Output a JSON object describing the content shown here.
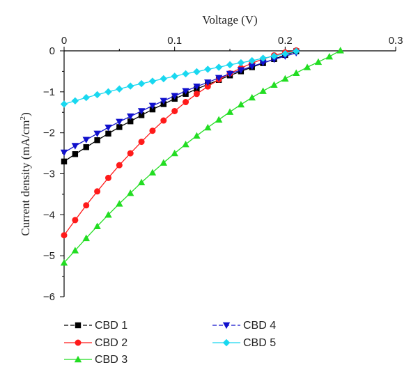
{
  "chart_data": {
    "type": "line",
    "xlabel": "Voltage (V)",
    "ylabel": "Current density (mA/cm",
    "ylabel_sup": "2",
    "ylabel_close": ")",
    "xlim": [
      0,
      0.3
    ],
    "ylim": [
      -6,
      0
    ],
    "x_ticks": [
      0,
      0.1,
      0.2,
      0.3
    ],
    "x_tick_labels": [
      "0",
      "0.1",
      "0.2",
      "0.3"
    ],
    "y_ticks": [
      0,
      -1,
      -2,
      -3,
      -4,
      -5,
      -6
    ],
    "y_tick_labels": [
      "0",
      "−1",
      "−2",
      "−3",
      "−4",
      "−5",
      "−6"
    ],
    "grid": false,
    "legend_position": "bottom",
    "series": [
      {
        "name": "CBD 1",
        "color": "#000000",
        "marker": "square",
        "points": [
          [
            0,
            -2.7
          ],
          [
            0.01,
            -2.52
          ],
          [
            0.02,
            -2.35
          ],
          [
            0.03,
            -2.18
          ],
          [
            0.04,
            -2.02
          ],
          [
            0.05,
            -1.86
          ],
          [
            0.06,
            -1.72
          ],
          [
            0.07,
            -1.57
          ],
          [
            0.08,
            -1.43
          ],
          [
            0.09,
            -1.3
          ],
          [
            0.1,
            -1.17
          ],
          [
            0.11,
            -1.05
          ],
          [
            0.12,
            -0.93
          ],
          [
            0.13,
            -0.82
          ],
          [
            0.14,
            -0.71
          ],
          [
            0.15,
            -0.6
          ],
          [
            0.16,
            -0.5
          ],
          [
            0.17,
            -0.4
          ],
          [
            0.18,
            -0.3
          ],
          [
            0.19,
            -0.2
          ],
          [
            0.2,
            -0.1
          ],
          [
            0.21,
            -0.01
          ]
        ]
      },
      {
        "name": "CBD 2",
        "color": "#ff1a1a",
        "marker": "circle",
        "points": [
          [
            0,
            -4.5
          ],
          [
            0.01,
            -4.13
          ],
          [
            0.02,
            -3.77
          ],
          [
            0.03,
            -3.43
          ],
          [
            0.04,
            -3.1
          ],
          [
            0.05,
            -2.79
          ],
          [
            0.06,
            -2.5
          ],
          [
            0.07,
            -2.22
          ],
          [
            0.08,
            -1.95
          ],
          [
            0.09,
            -1.7
          ],
          [
            0.1,
            -1.47
          ],
          [
            0.11,
            -1.25
          ],
          [
            0.12,
            -1.05
          ],
          [
            0.13,
            -0.87
          ],
          [
            0.14,
            -0.7
          ],
          [
            0.15,
            -0.55
          ],
          [
            0.16,
            -0.42
          ],
          [
            0.17,
            -0.3
          ],
          [
            0.18,
            -0.2
          ],
          [
            0.19,
            -0.11
          ],
          [
            0.2,
            -0.04
          ],
          [
            0.21,
            0.01
          ]
        ]
      },
      {
        "name": "CBD 3",
        "color": "#22dd22",
        "marker": "triangle-up",
        "points": [
          [
            0,
            -5.17
          ],
          [
            0.01,
            -4.87
          ],
          [
            0.02,
            -4.57
          ],
          [
            0.03,
            -4.28
          ],
          [
            0.04,
            -4.0
          ],
          [
            0.05,
            -3.73
          ],
          [
            0.06,
            -3.47
          ],
          [
            0.07,
            -3.21
          ],
          [
            0.08,
            -2.97
          ],
          [
            0.09,
            -2.73
          ],
          [
            0.1,
            -2.5
          ],
          [
            0.11,
            -2.28
          ],
          [
            0.12,
            -2.07
          ],
          [
            0.13,
            -1.87
          ],
          [
            0.14,
            -1.68
          ],
          [
            0.15,
            -1.49
          ],
          [
            0.16,
            -1.31
          ],
          [
            0.17,
            -1.14
          ],
          [
            0.18,
            -0.98
          ],
          [
            0.19,
            -0.83
          ],
          [
            0.2,
            -0.68
          ],
          [
            0.21,
            -0.54
          ],
          [
            0.22,
            -0.4
          ],
          [
            0.23,
            -0.27
          ],
          [
            0.24,
            -0.14
          ],
          [
            0.25,
            0.01
          ]
        ]
      },
      {
        "name": "CBD 4",
        "color": "#1010cc",
        "marker": "triangle-down",
        "points": [
          [
            0,
            -2.48
          ],
          [
            0.01,
            -2.32
          ],
          [
            0.02,
            -2.17
          ],
          [
            0.03,
            -2.02
          ],
          [
            0.04,
            -1.87
          ],
          [
            0.05,
            -1.73
          ],
          [
            0.06,
            -1.6
          ],
          [
            0.07,
            -1.47
          ],
          [
            0.08,
            -1.34
          ],
          [
            0.09,
            -1.22
          ],
          [
            0.1,
            -1.1
          ],
          [
            0.11,
            -0.98
          ],
          [
            0.12,
            -0.87
          ],
          [
            0.13,
            -0.77
          ],
          [
            0.14,
            -0.66
          ],
          [
            0.15,
            -0.56
          ],
          [
            0.16,
            -0.47
          ],
          [
            0.17,
            -0.38
          ],
          [
            0.18,
            -0.29
          ],
          [
            0.19,
            -0.21
          ],
          [
            0.2,
            -0.13
          ],
          [
            0.21,
            -0.05
          ]
        ]
      },
      {
        "name": "CBD 5",
        "color": "#19d8f0",
        "marker": "diamond",
        "points": [
          [
            0,
            -1.3
          ],
          [
            0.01,
            -1.22
          ],
          [
            0.02,
            -1.14
          ],
          [
            0.03,
            -1.07
          ],
          [
            0.04,
            -1.0
          ],
          [
            0.05,
            -0.93
          ],
          [
            0.06,
            -0.86
          ],
          [
            0.07,
            -0.8
          ],
          [
            0.08,
            -0.74
          ],
          [
            0.09,
            -0.68
          ],
          [
            0.1,
            -0.62
          ],
          [
            0.11,
            -0.56
          ],
          [
            0.12,
            -0.51
          ],
          [
            0.13,
            -0.45
          ],
          [
            0.14,
            -0.4
          ],
          [
            0.15,
            -0.34
          ],
          [
            0.16,
            -0.29
          ],
          [
            0.17,
            -0.24
          ],
          [
            0.18,
            -0.18
          ],
          [
            0.19,
            -0.13
          ],
          [
            0.2,
            -0.07
          ],
          [
            0.21,
            -0.01
          ]
        ]
      }
    ]
  }
}
